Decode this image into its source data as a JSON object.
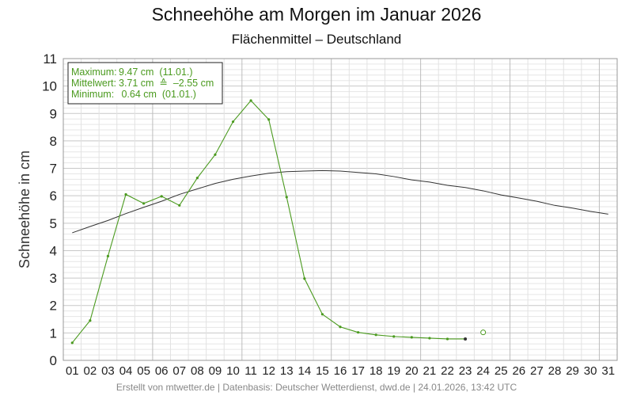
{
  "chart_data": {
    "type": "line",
    "title": "Schneehöhe am Morgen im Januar 2026",
    "subtitle": "Flächenmittel – Deutschland",
    "ylabel": "Schneehöhe in cm",
    "xlabel": "",
    "ylim": [
      0,
      11
    ],
    "yticks": [
      "0",
      "1",
      "2",
      "3",
      "4",
      "5",
      "6",
      "7",
      "8",
      "9",
      "10",
      "11"
    ],
    "categories": [
      "01",
      "02",
      "03",
      "04",
      "05",
      "06",
      "07",
      "08",
      "09",
      "10",
      "11",
      "12",
      "13",
      "14",
      "15",
      "16",
      "17",
      "18",
      "19",
      "20",
      "21",
      "22",
      "23",
      "24",
      "25",
      "26",
      "27",
      "28",
      "29",
      "30",
      "31"
    ],
    "grid": true,
    "legend": "top-left",
    "series": [
      {
        "color": "#4a9a1e",
        "values": [
          0.64,
          1.45,
          3.8,
          6.05,
          5.72,
          5.98,
          5.65,
          6.65,
          7.5,
          8.7,
          9.47,
          8.78,
          5.95,
          2.98,
          1.68,
          1.22,
          1.02,
          0.93,
          0.87,
          0.84,
          0.81,
          0.78,
          0.78,
          null,
          null,
          null,
          null,
          null,
          null,
          null,
          null
        ]
      },
      {
        "color": "#333333",
        "values": [
          4.65,
          4.88,
          5.1,
          5.35,
          5.58,
          5.8,
          6.05,
          6.25,
          6.45,
          6.6,
          6.72,
          6.82,
          6.88,
          6.9,
          6.92,
          6.9,
          6.85,
          6.8,
          6.7,
          6.58,
          6.5,
          6.38,
          6.3,
          6.18,
          6.03,
          5.92,
          5.8,
          5.65,
          5.55,
          5.43,
          5.33
        ]
      }
    ],
    "open_point": {
      "x": "24",
      "y": 1.02,
      "color": "#4a9a1e"
    },
    "stats": {
      "lines": [
        {
          "label": "Maximum:",
          "value": "9.47 cm  (11.01.)"
        },
        {
          "label": "Mittelwert:",
          "value": "3.71 cm  ≙  –2.55 cm"
        },
        {
          "label": "Minimum:",
          "value": " 0.64 cm  (01.01.)"
        }
      ],
      "color": "#4a9a1e"
    },
    "footer": "Erstellt von mtwetter.de | Datenbasis: Deutscher Wetterdienst, dwd.de | 24.01.2026, 13:42 UTC"
  }
}
